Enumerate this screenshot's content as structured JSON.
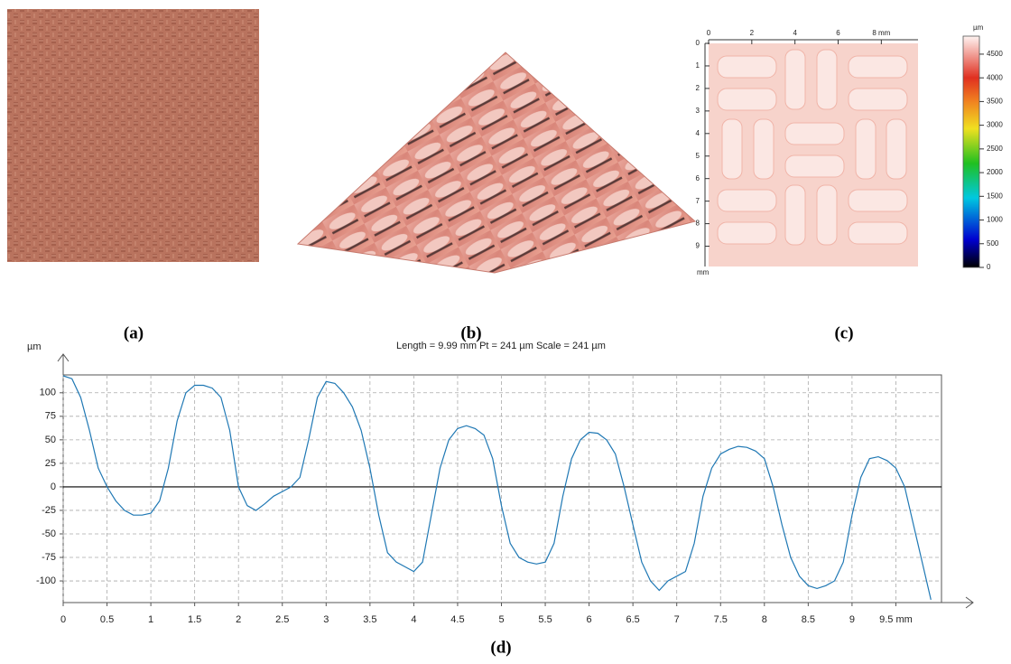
{
  "panels": {
    "a": "(a)",
    "b": "(b)",
    "c": "(c)",
    "d": "(d)"
  },
  "chart_data": [
    {
      "type": "heatmap",
      "xlim": [
        0,
        9.7
      ],
      "xticks": [
        0,
        2,
        4,
        6,
        {
          "value": 8,
          "label": "8 mm"
        }
      ],
      "ylim": [
        0,
        9.9
      ],
      "yticks": [
        0,
        1,
        2,
        3,
        4,
        5,
        6,
        7,
        8,
        9
      ],
      "y_unit": "mm",
      "colorbar": {
        "unit": "µm",
        "lim": [
          0,
          4880
        ],
        "ticks": [
          0,
          500,
          1000,
          1500,
          2000,
          2500,
          3000,
          3500,
          4000,
          4500
        ]
      }
    },
    {
      "type": "line",
      "title": "Length = 9.99 mm  Pt = 241 µm  Scale = 241 µm",
      "ylabel": "µm",
      "x": [
        0,
        0.1,
        0.2,
        0.3,
        0.4,
        0.5,
        0.6,
        0.7,
        0.8,
        0.9,
        1,
        1.1,
        1.2,
        1.3,
        1.4,
        1.5,
        1.6,
        1.7,
        1.8,
        1.9,
        2,
        2.1,
        2.2,
        2.3,
        2.4,
        2.5,
        2.6,
        2.7,
        2.8,
        2.9,
        3,
        3.1,
        3.2,
        3.3,
        3.4,
        3.5,
        3.6,
        3.7,
        3.8,
        3.9,
        4,
        4.1,
        4.2,
        4.3,
        4.4,
        4.5,
        4.6,
        4.7,
        4.8,
        4.9,
        5,
        5.1,
        5.2,
        5.3,
        5.4,
        5.5,
        5.6,
        5.7,
        5.8,
        5.9,
        6,
        6.1,
        6.2,
        6.3,
        6.4,
        6.5,
        6.6,
        6.7,
        6.8,
        6.9,
        7,
        7.1,
        7.2,
        7.3,
        7.4,
        7.5,
        7.6,
        7.7,
        7.8,
        7.9,
        8,
        8.1,
        8.2,
        8.3,
        8.4,
        8.5,
        8.6,
        8.7,
        8.8,
        8.9,
        9,
        9.1,
        9.2,
        9.3,
        9.4,
        9.5,
        9.6,
        9.7,
        9.8,
        9.9
      ],
      "series": [
        {
          "color": "#1f78b4",
          "values": [
            118,
            115,
            95,
            60,
            20,
            0,
            -15,
            -25,
            -30,
            -30,
            -28,
            -15,
            20,
            70,
            100,
            108,
            108,
            105,
            95,
            60,
            0,
            -20,
            -25,
            -18,
            -10,
            -5,
            0,
            10,
            50,
            95,
            112,
            110,
            100,
            85,
            60,
            20,
            -30,
            -70,
            -80,
            -85,
            -90,
            -80,
            -30,
            20,
            50,
            62,
            65,
            62,
            55,
            30,
            -20,
            -60,
            -75,
            -80,
            -82,
            -80,
            -60,
            -10,
            30,
            50,
            58,
            57,
            50,
            35,
            0,
            -40,
            -80,
            -100,
            -110,
            -100,
            -95,
            -90,
            -60,
            -10,
            20,
            35,
            40,
            43,
            42,
            38,
            30,
            0,
            -40,
            -75,
            -95,
            -105,
            -108,
            -105,
            -100,
            -80,
            -30,
            10,
            30,
            32,
            28,
            20,
            0,
            -40,
            -80,
            -120
          ]
        }
      ],
      "xlim": [
        0,
        10
      ],
      "xticks": [
        0,
        0.5,
        1,
        1.5,
        2,
        2.5,
        3,
        3.5,
        4,
        4.5,
        5,
        5.5,
        6,
        6.5,
        7,
        7.5,
        8,
        8.5,
        9,
        {
          "value": 9.5,
          "label": "9.5 mm"
        }
      ],
      "ylim": [
        -123,
        119
      ],
      "yticks": [
        -100,
        -75,
        -50,
        -25,
        0,
        25,
        50,
        75,
        100
      ],
      "grid": true
    }
  ]
}
